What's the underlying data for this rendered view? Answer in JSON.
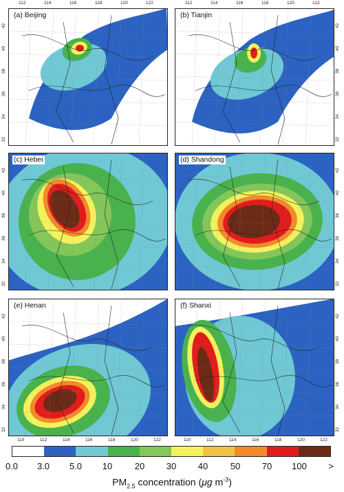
{
  "panels": [
    {
      "label": "(a) Beijing"
    },
    {
      "label": "(b) Tianjin"
    },
    {
      "label": "(c) Hebei"
    },
    {
      "label": "(d) Shandong"
    },
    {
      "label": "(e) Henan"
    },
    {
      "label": "(f) Shanxi"
    }
  ],
  "top_lon_ticks": [
    "112",
    "114",
    "116",
    "118",
    "120",
    "122"
  ],
  "bottom_lon_ticks": [
    "110",
    "112",
    "114",
    "116",
    "118",
    "120",
    "122"
  ],
  "lat_ticks": [
    "42",
    "40",
    "38",
    "36",
    "34",
    "32"
  ],
  "colorbar": {
    "labels": [
      "0.0",
      "3.0",
      "5.0",
      "10",
      "20",
      "30",
      "40",
      "50",
      "70",
      "100",
      ">"
    ],
    "colors": [
      "#ffffff",
      "#2c63c2",
      "#6fc8d4",
      "#49b24c",
      "#84c65a",
      "#f4f25c",
      "#f2c246",
      "#f28a2c",
      "#e11c1c",
      "#6b2b16"
    ],
    "title_prefix": "PM",
    "title_sub": "2.5",
    "title_suffix": " concentration (",
    "title_unit_mu": "μg",
    "title_unit_rest": " m",
    "title_unit_exp": "-3",
    "title_close": ")"
  }
}
